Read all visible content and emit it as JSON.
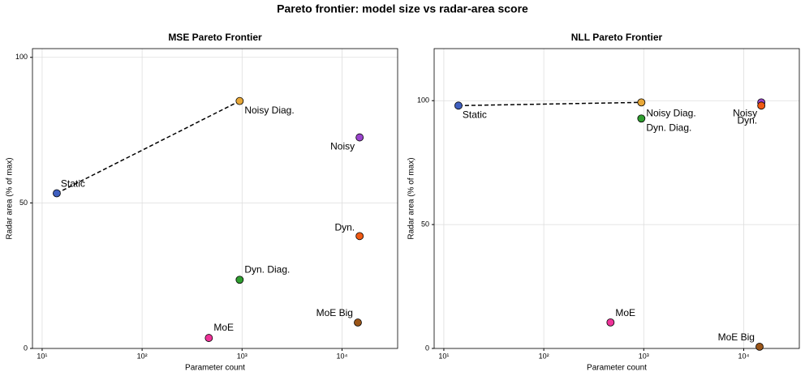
{
  "title": "Pareto frontier: model size vs radar-area score",
  "chart_data": [
    {
      "type": "scatter",
      "title": "MSE Pareto Frontier",
      "x_label": "Parameter count",
      "y_label": "Radar area (% of max)",
      "xscale": "log",
      "grid": true,
      "xlim": [
        8,
        36000
      ],
      "ylim": [
        0,
        103
      ],
      "xticks": [
        {
          "value": 10,
          "label": "10¹"
        },
        {
          "value": 100,
          "label": "10²"
        },
        {
          "value": 1000,
          "label": "10³"
        },
        {
          "value": 10000,
          "label": "10⁴"
        }
      ],
      "yticks": [
        0,
        50,
        100
      ],
      "point_labels": [
        "Static",
        "Noisy Diag.",
        "Noisy",
        "Dyn.",
        "Dyn. Diag.",
        "MoE",
        "MoE Big"
      ],
      "x": [
        14,
        946,
        15000,
        15000,
        946,
        465,
        14400
      ],
      "values": [
        53.3,
        85,
        72.5,
        38.6,
        23.6,
        3.6,
        8.9
      ],
      "colors": [
        "#3f5fbf",
        "#e8a838",
        "#9a44cc",
        "#f05a14",
        "#2f9e2f",
        "#ee3399",
        "#9a5518"
      ],
      "on_frontier": [
        true,
        true,
        false,
        false,
        false,
        false,
        false
      ]
    },
    {
      "type": "scatter",
      "title": "NLL Pareto Frontier",
      "x_label": "Parameter count",
      "y_label": "Radar area (% of max)",
      "xscale": "log",
      "grid": true,
      "xlim": [
        8,
        36000
      ],
      "ylim": [
        0,
        121
      ],
      "xticks": [
        {
          "value": 10,
          "label": "10¹"
        },
        {
          "value": 100,
          "label": "10²"
        },
        {
          "value": 1000,
          "label": "10³"
        },
        {
          "value": 10000,
          "label": "10⁴"
        }
      ],
      "yticks": [
        0,
        50,
        100
      ],
      "point_labels": [
        "Static",
        "Noisy Diag.",
        "Noisy",
        "Dyn.",
        "Dyn. Diag.",
        "MoE",
        "MoE Big"
      ],
      "x": [
        14,
        946,
        15000,
        15000,
        946,
        465,
        14400
      ],
      "values": [
        98,
        99.3,
        99.3,
        98,
        92.8,
        10.5,
        0.7
      ],
      "colors": [
        "#3f5fbf",
        "#e8a838",
        "#9a44cc",
        "#f05a14",
        "#2f9e2f",
        "#ee3399",
        "#9a5518"
      ],
      "on_frontier": [
        true,
        true,
        false,
        false,
        false,
        false,
        false
      ]
    }
  ]
}
